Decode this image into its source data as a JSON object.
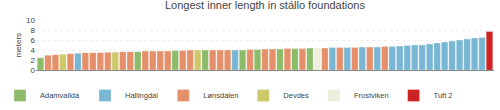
{
  "chart_data": {
    "type": "bar",
    "title": "Longest inner length in stállo foundations",
    "ylabel": "meters",
    "categories": [
      null,
      null,
      null,
      null,
      null,
      null,
      null,
      null,
      null,
      null,
      null,
      null,
      null,
      null,
      null,
      null,
      null,
      null,
      null,
      null,
      null,
      null,
      null,
      null,
      null,
      null,
      null,
      null,
      null,
      null,
      null,
      null,
      null,
      null,
      null,
      null,
      null,
      null,
      null,
      null,
      null,
      null,
      null,
      null,
      null,
      null,
      null,
      null,
      null,
      null,
      null,
      null,
      null,
      null,
      null,
      null,
      null,
      null,
      null,
      null,
      null
    ],
    "series": [
      {
        "name": "Adamvalldá",
        "color": "#8cbb6a",
        "values": [
          2.5,
          null,
          null,
          null,
          null,
          null,
          null,
          null,
          null,
          null,
          null,
          null,
          null,
          3.7,
          null,
          null,
          null,
          null,
          3.9,
          null,
          null,
          null,
          4.0,
          null,
          null,
          null,
          null,
          4.0,
          null,
          4.1,
          null,
          null,
          4.2,
          null,
          4.3,
          null,
          4.4,
          null,
          null,
          null,
          null,
          null,
          null,
          null,
          null,
          null,
          null,
          null,
          null,
          null,
          null,
          null,
          null,
          null,
          null,
          null,
          null,
          null,
          null,
          null,
          null
        ]
      },
      {
        "name": "Hallingdal",
        "color": "#78b6d3",
        "values": [
          null,
          null,
          null,
          null,
          null,
          3.4,
          null,
          null,
          null,
          null,
          null,
          null,
          null,
          null,
          null,
          null,
          null,
          null,
          null,
          null,
          null,
          null,
          null,
          null,
          null,
          null,
          4.0,
          null,
          null,
          null,
          null,
          null,
          null,
          null,
          null,
          null,
          null,
          null,
          null,
          4.5,
          null,
          4.5,
          null,
          4.6,
          null,
          4.6,
          null,
          4.7,
          4.8,
          4.9,
          5.0,
          5.0,
          5.2,
          5.4,
          5.6,
          5.8,
          6.0,
          6.2,
          6.4,
          6.5,
          null
        ]
      },
      {
        "name": "Lønsdalen",
        "color": "#e5906a",
        "values": [
          null,
          3.0,
          3.1,
          null,
          3.3,
          null,
          3.5,
          3.5,
          3.5,
          3.6,
          null,
          3.7,
          3.7,
          null,
          3.8,
          3.8,
          3.8,
          3.8,
          null,
          3.9,
          4.0,
          null,
          null,
          4.0,
          4.0,
          4.0,
          null,
          null,
          4.1,
          null,
          4.2,
          4.2,
          null,
          4.3,
          null,
          4.3,
          null,
          null,
          4.4,
          null,
          4.5,
          null,
          4.5,
          null,
          4.6,
          null,
          4.7,
          null,
          null,
          null,
          null,
          null,
          null,
          null,
          null,
          null,
          null,
          null,
          null,
          null,
          null
        ]
      },
      {
        "name": "Devdes",
        "color": "#cdc86a",
        "values": [
          null,
          null,
          null,
          3.2,
          null,
          null,
          null,
          null,
          null,
          null,
          3.6,
          null,
          null,
          null,
          null,
          null,
          null,
          null,
          null,
          null,
          null,
          4.0,
          null,
          null,
          null,
          null,
          null,
          null,
          null,
          null,
          null,
          null,
          null,
          null,
          null,
          null,
          null,
          null,
          null,
          null,
          null,
          null,
          null,
          null,
          null,
          null,
          null,
          null,
          null,
          null,
          null,
          null,
          null,
          null,
          null,
          null,
          null,
          null,
          null,
          null,
          null
        ]
      },
      {
        "name": "Frostviken",
        "color": "#eeeedd",
        "values": [
          null,
          null,
          null,
          null,
          null,
          null,
          null,
          null,
          null,
          null,
          null,
          null,
          null,
          null,
          null,
          null,
          null,
          null,
          null,
          null,
          null,
          null,
          null,
          null,
          null,
          null,
          null,
          null,
          null,
          null,
          null,
          null,
          null,
          null,
          null,
          null,
          null,
          4.4,
          null,
          null,
          null,
          null,
          null,
          null,
          null,
          null,
          null,
          null,
          null,
          null,
          null,
          null,
          null,
          null,
          null,
          null,
          null,
          null,
          null,
          null,
          null
        ]
      },
      {
        "name": "Tuft 2",
        "color": "#cc2222",
        "values": [
          null,
          null,
          null,
          null,
          null,
          null,
          null,
          null,
          null,
          null,
          null,
          null,
          null,
          null,
          null,
          null,
          null,
          null,
          null,
          null,
          null,
          null,
          null,
          null,
          null,
          null,
          null,
          null,
          null,
          null,
          null,
          null,
          null,
          null,
          null,
          null,
          null,
          null,
          null,
          null,
          null,
          null,
          null,
          null,
          null,
          null,
          null,
          null,
          null,
          null,
          null,
          null,
          null,
          null,
          null,
          null,
          null,
          null,
          null,
          null,
          7.7
        ]
      }
    ],
    "ylim": [
      0,
      10
    ],
    "yticks": [
      0,
      2,
      4,
      6,
      8,
      10
    ],
    "grid": true,
    "legend": "bottom",
    "tick_labels": "y"
  }
}
